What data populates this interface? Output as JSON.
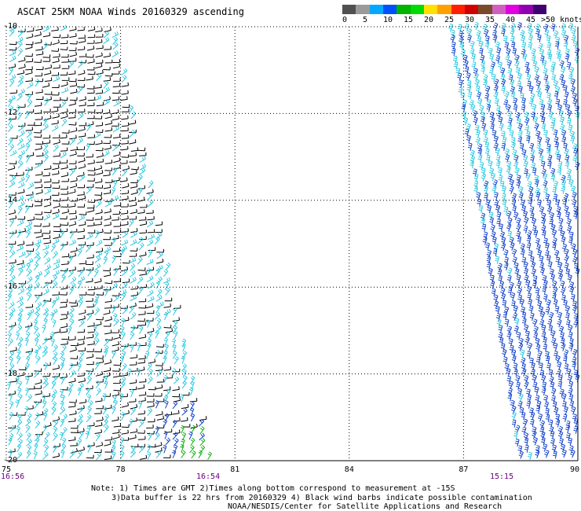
{
  "title": "ASCAT 25KM NOAA Winds 20160329 ascending",
  "legend": {
    "units": ">50 knots",
    "ticks": [
      "0",
      "5",
      "10",
      "15",
      "20",
      "25",
      "30",
      "35",
      "40",
      "45"
    ],
    "colors": [
      "#505050",
      "#9a9a9a",
      "#00a8ff",
      "#0050ff",
      "#00b400",
      "#00dc00",
      "#ffe000",
      "#ffa000",
      "#ff2000",
      "#d00000",
      "#7a4a2a",
      "#d060c0",
      "#e000e0",
      "#9000b0",
      "#400070"
    ]
  },
  "map": {
    "lon_range": [
      75,
      90
    ],
    "lat_range": [
      -20,
      -10
    ],
    "lat_labels": [
      "-10",
      "-12",
      "-14",
      "-16",
      "-18",
      "-20"
    ],
    "lon_labels": [
      "75",
      "78",
      "81",
      "84",
      "87",
      "90"
    ],
    "time_labels": [
      "16:56",
      "16:54",
      "15:15"
    ],
    "colors": {
      "contaminated": "#000000",
      "light": "#28c8e0",
      "moderate": "#1040c8",
      "green": "#10b010"
    }
  },
  "notes": [
    "Note: 1) Times are GMT 2)Times along bottom correspond to measurement at -15S",
    "3)Data buffer is 22 hrs from 20160329 4) Black wind barbs indicate possible contamination",
    "NOAA/NESDIS/Center for Satellite Applications and Research"
  ]
}
